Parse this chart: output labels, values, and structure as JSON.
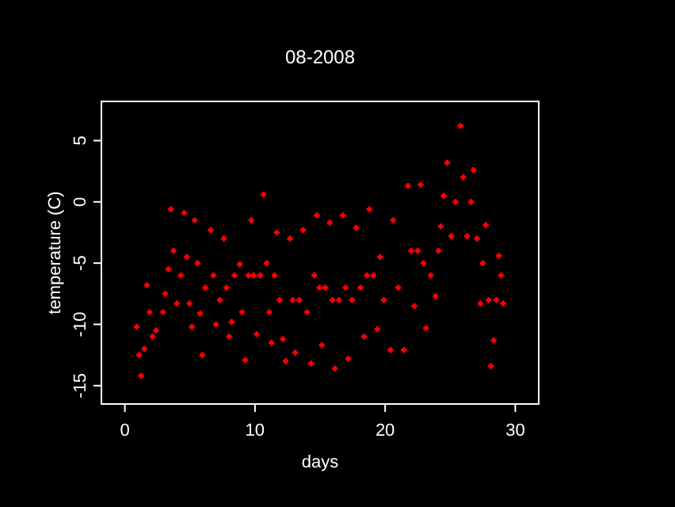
{
  "chart_data": {
    "type": "scatter",
    "title": "08-2008",
    "xlabel": "days",
    "ylabel": "temperature (C)",
    "xlim": [
      -1.8,
      31.8
    ],
    "ylim": [
      -16.5,
      8.2
    ],
    "xticks": [
      0,
      10,
      20,
      30
    ],
    "yticks": [
      -15,
      -10,
      -5,
      0,
      5
    ],
    "marker": "cross",
    "grid": false,
    "series": [
      {
        "color": "#ff0000",
        "x": [
          0.9,
          1.1,
          1.25,
          1.5,
          1.7,
          1.9,
          2.12,
          2.4,
          2.93,
          3.1,
          3.34,
          3.54,
          3.74,
          4.0,
          4.3,
          4.56,
          4.76,
          4.96,
          5.15,
          5.37,
          5.58,
          5.78,
          5.95,
          6.18,
          6.59,
          6.8,
          7.0,
          7.3,
          7.6,
          7.8,
          8.01,
          8.2,
          8.42,
          8.83,
          9.0,
          9.24,
          9.5,
          9.72,
          9.9,
          10.13,
          10.4,
          10.65,
          10.9,
          11.1,
          11.27,
          11.5,
          11.67,
          11.9,
          12.15,
          12.36,
          12.69,
          12.9,
          13.09,
          13.4,
          13.7,
          14.0,
          14.31,
          14.55,
          14.75,
          14.95,
          15.13,
          15.4,
          15.74,
          15.95,
          16.14,
          16.45,
          16.75,
          16.95,
          17.16,
          17.45,
          17.77,
          18.1,
          18.38,
          18.6,
          18.79,
          19.1,
          19.4,
          19.6,
          19.9,
          20.41,
          20.61,
          21.0,
          21.43,
          21.75,
          22.0,
          22.24,
          22.5,
          22.73,
          22.95,
          23.13,
          23.5,
          23.87,
          24.1,
          24.27,
          24.5,
          24.76,
          25.09,
          25.4,
          25.78,
          26.0,
          26.3,
          26.6,
          26.79,
          27.05,
          27.32,
          27.5,
          27.73,
          27.95,
          28.13,
          28.34,
          28.55,
          28.74,
          28.9,
          29.07
        ],
        "values": [
          -10.2,
          -12.5,
          -14.2,
          -12.0,
          -6.8,
          -9.0,
          -11.0,
          -10.5,
          -9.0,
          -7.5,
          -5.5,
          -0.6,
          -4.0,
          -8.3,
          -6.0,
          -0.9,
          -4.5,
          -8.3,
          -10.2,
          -1.5,
          -5.0,
          -9.1,
          -12.5,
          -7.0,
          -2.3,
          -6.0,
          -10.0,
          -8.0,
          -3.0,
          -7.0,
          -11.0,
          -9.8,
          -6.0,
          -5.1,
          -9.0,
          -12.9,
          -6.0,
          -1.5,
          -6.0,
          -10.8,
          -6.0,
          0.6,
          -5.0,
          -9.0,
          -11.5,
          -6.0,
          -2.5,
          -8.0,
          -11.2,
          -13.0,
          -3.0,
          -8.0,
          -12.3,
          -8.0,
          -2.3,
          -9.0,
          -13.2,
          -6.0,
          -1.1,
          -7.0,
          -11.7,
          -7.0,
          -1.7,
          -8.0,
          -13.6,
          -8.0,
          -1.1,
          -7.0,
          -12.8,
          -8.0,
          -2.1,
          -7.0,
          -11.0,
          -6.0,
          -0.6,
          -6.0,
          -10.4,
          -4.5,
          -8.0,
          -12.1,
          -1.5,
          -7.0,
          -12.1,
          1.3,
          -4.0,
          -8.5,
          -4.0,
          1.4,
          -5.0,
          -10.3,
          -6.0,
          -7.7,
          -4.0,
          -2.0,
          0.5,
          3.2,
          -2.8,
          0.0,
          6.2,
          2.0,
          -2.8,
          0.0,
          2.6,
          -3.0,
          -8.3,
          -5.0,
          -1.9,
          -8.0,
          -13.4,
          -11.3,
          -8.0,
          -4.4,
          -6.0,
          -8.3
        ]
      }
    ]
  }
}
